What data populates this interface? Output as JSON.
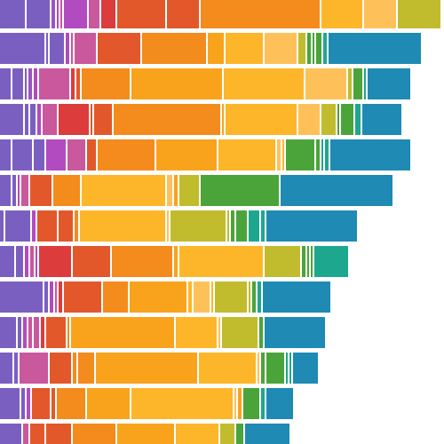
{
  "chart_data": {
    "type": "stacked-bar",
    "orientation": "horizontal",
    "rows": [
      {
        "values": [
          32,
          28,
          6,
          4,
          4,
          28,
          14,
          18,
          56,
          38,
          136,
          48,
          38,
          50
        ],
        "colors": [
          "#7b5fc0",
          "#7b5fc0",
          "#9a55c0",
          "#b24ac0",
          "#c9589c",
          "#b24ac0",
          "#c9589c",
          "#dd3c3c",
          "#e2582a",
          "#e2582a",
          "#f38b1d",
          "#fdb629",
          "#fec15a",
          "#c1bc2e"
        ]
      },
      {
        "values": [
          54,
          4,
          18,
          6,
          4,
          26,
          50,
          74,
          20,
          44,
          38,
          10,
          6,
          4,
          8,
          6,
          106
        ],
        "colors": [
          "#7b5fc0",
          "#7b5fc0",
          "#7b5fc0",
          "#b24ac0",
          "#c9589c",
          "#c9589c",
          "#e2582a",
          "#f38b1d",
          "#f9a31c",
          "#fdb629",
          "#fec15a",
          "#c1bc2e",
          "#4ba43a",
          "#4ba43a",
          "#4ba43a",
          "#1ea78f",
          "#1f8ab4"
        ]
      },
      {
        "values": [
          16,
          14,
          4,
          6,
          6,
          36,
          6,
          6,
          56,
          104,
          92,
          48,
          6,
          12,
          4,
          50
        ],
        "colors": [
          "#7b5fc0",
          "#7b5fc0",
          "#7b5fc0",
          "#9a55c0",
          "#b24ac0",
          "#c9589c",
          "#dd3c3c",
          "#e2582a",
          "#f38b1d",
          "#f9a31c",
          "#fdb629",
          "#fec15a",
          "#c1bc2e",
          "#4ba43a",
          "#1ea78f",
          "#1f8ab4"
        ]
      },
      {
        "values": [
          30,
          6,
          8,
          6,
          18,
          36,
          4,
          22,
          122,
          4,
          82,
          26,
          18,
          4,
          16,
          8,
          46
        ],
        "colors": [
          "#7b5fc0",
          "#7b5fc0",
          "#7b5fc0",
          "#b24ac0",
          "#c9589c",
          "#dd3c3c",
          "#e2582a",
          "#e2582a",
          "#f38b1d",
          "#f9a31c",
          "#fdb629",
          "#fec15a",
          "#c1bc2e",
          "#4ba43a",
          "#4ba43a",
          "#1ea78f",
          "#1f8ab4"
        ]
      },
      {
        "values": [
          16,
          24,
          14,
          24,
          22,
          12,
          66,
          70,
          66,
          6,
          4,
          34,
          6,
          4,
          6,
          92
        ],
        "colors": [
          "#7b5fc0",
          "#7b5fc0",
          "#7b5fc0",
          "#b24ac0",
          "#c9589c",
          "#e2582a",
          "#f38b1d",
          "#f9a31c",
          "#fdb629",
          "#fec15a",
          "#fdb629",
          "#4ba43a",
          "#4ba43a",
          "#1ea78f",
          "#1ea78f",
          "#1f8ab4"
        ]
      },
      {
        "values": [
          16,
          6,
          4,
          10,
          26,
          32,
          96,
          8,
          6,
          24,
          90,
          128
        ],
        "colors": [
          "#7b5fc0",
          "#7b5fc0",
          "#b24ac0",
          "#c9589c",
          "#e2582a",
          "#f38b1d",
          "#fdb629",
          "#fec15a",
          "#f9a31c",
          "#c1bc2e",
          "#4ba43a",
          "#1f8ab4"
        ]
      },
      {
        "values": [
          8,
          30,
          6,
          24,
          18,
          6,
          98,
          4,
          64,
          4,
          6,
          14,
          14,
          6,
          104
        ],
        "colors": [
          "#7b5fc0",
          "#7b5fc0",
          "#b24ac0",
          "#e2582a",
          "#e2582a",
          "#f38b1d",
          "#fdb629",
          "#fec15a",
          "#c1bc2e",
          "#c1bc2e",
          "#4ba43a",
          "#4ba43a",
          "#1ea78f",
          "#1ea78f",
          "#1f8ab4"
        ]
      },
      {
        "values": [
          20,
          10,
          6,
          6,
          4,
          38,
          44,
          70,
          6,
          96,
          42,
          6,
          4,
          4,
          40
        ],
        "colors": [
          "#7b5fc0",
          "#7b5fc0",
          "#b24ac0",
          "#c9589c",
          "#b24ac0",
          "#dd3c3c",
          "#e2582a",
          "#f38b1d",
          "#f9a31c",
          "#fdb629",
          "#c1bc2e",
          "#4ba43a",
          "#4ba43a",
          "#4ba43a",
          "#1ea78f"
        ]
      },
      {
        "values": [
          52,
          6,
          6,
          4,
          6,
          44,
          30,
          66,
          6,
          20,
          4,
          38,
          4,
          6,
          6,
          78
        ],
        "colors": [
          "#7b5fc0",
          "#7b5fc0",
          "#b24ac0",
          "#c9589c",
          "#dd3c3c",
          "#e2582a",
          "#f38b1d",
          "#f9a31c",
          "#fdb629",
          "#fec15a",
          "#fdb629",
          "#c1bc2e",
          "#c1bc2e",
          "#4ba43a",
          "#1ea78f",
          "#1f8ab4"
        ]
      },
      {
        "values": [
          22,
          6,
          6,
          6,
          8,
          6,
          24,
          4,
          118,
          48,
          4,
          42,
          6,
          70
        ],
        "colors": [
          "#7b5fc0",
          "#7b5fc0",
          "#b24ac0",
          "#c9589c",
          "#c9589c",
          "#dd3c3c",
          "#e2582a",
          "#f38b1d",
          "#f9a31c",
          "#fdb629",
          "#fec15a",
          "#c1bc2e",
          "#4ba43a",
          "#1f8ab4"
        ]
      },
      {
        "values": [
          18,
          6,
          34,
          26,
          6,
          20,
          116,
          66,
          4,
          6,
          22,
          4,
          4,
          30
        ],
        "colors": [
          "#7b5fc0",
          "#7b5fc0",
          "#c9589c",
          "#e2582a",
          "#f38b1d",
          "#f38b1d",
          "#f9a31c",
          "#fdb629",
          "#fec15a",
          "#4ba43a",
          "#4ba43a",
          "#1ea78f",
          "#1ea78f",
          "#1f8ab4"
        ]
      },
      {
        "values": [
          26,
          6,
          6,
          22,
          6,
          34,
          50,
          116,
          4,
          6,
          20,
          6,
          32
        ],
        "colors": [
          "#7b5fc0",
          "#7b5fc0",
          "#b24ac0",
          "#e2582a",
          "#e2582a",
          "#f38b1d",
          "#f9a31c",
          "#fdb629",
          "#fec15a",
          "#f9a31c",
          "#4ba43a",
          "#1ea78f",
          "#1f8ab4"
        ]
      },
      {
        "values": [
          28,
          8,
          18,
          30,
          50,
          66,
          50,
          18,
          10,
          52
        ],
        "colors": [
          "#7b5fc0",
          "#c9589c",
          "#e2582a",
          "#e2582a",
          "#f38b1d",
          "#f9a31c",
          "#fdb629",
          "#c1bc2e",
          "#4ba43a",
          "#1f8ab4"
        ]
      }
    ]
  }
}
